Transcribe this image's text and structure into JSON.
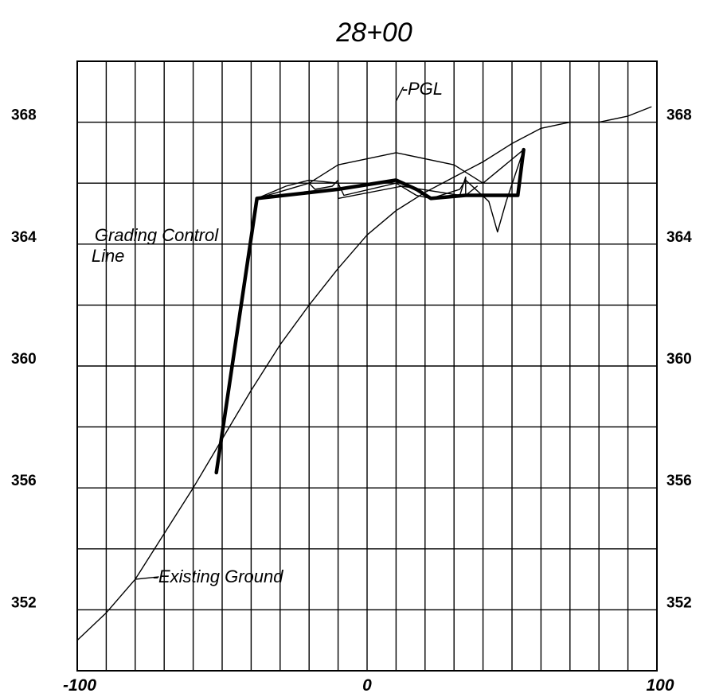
{
  "chart_data": {
    "type": "line",
    "title": "28+00",
    "xlabel": "",
    "ylabel": "",
    "xlim": [
      -100,
      100
    ],
    "ylim": [
      350,
      370
    ],
    "x_ticks": [
      "-100",
      "0",
      "100"
    ],
    "y_ticks": [
      "352",
      "356",
      "360",
      "364",
      "368"
    ],
    "grid": true,
    "x_grid_step": 10,
    "y_grid_step": 2,
    "series": [
      {
        "name": "Existing Ground",
        "stroke": "thin",
        "x": [
          -100,
          -90,
          -80,
          -70,
          -60,
          -50,
          -40,
          -30,
          -20,
          -10,
          0,
          10,
          20,
          30,
          40,
          50,
          60,
          70,
          80,
          90,
          98
        ],
        "y": [
          351.0,
          351.9,
          353.0,
          354.5,
          356.0,
          357.6,
          359.2,
          360.7,
          362.0,
          363.2,
          364.3,
          365.1,
          365.7,
          366.2,
          366.7,
          367.3,
          367.8,
          368.0,
          368.0,
          368.2,
          368.5
        ]
      },
      {
        "name": "Grading Control Line",
        "stroke": "thick",
        "x": [
          -52,
          -38,
          -10,
          10,
          17,
          22,
          34,
          52,
          54
        ],
        "y": [
          356.5,
          365.5,
          365.8,
          366.1,
          365.8,
          365.5,
          365.6,
          365.6,
          367.1
        ]
      },
      {
        "name": "PGL",
        "stroke": "thin",
        "x": [
          -38,
          -20,
          -10,
          10,
          30,
          40,
          54
        ],
        "y": [
          365.5,
          366.0,
          366.6,
          367.0,
          366.6,
          366.0,
          367.1
        ]
      },
      {
        "name": "",
        "stroke": "thin",
        "x": [
          -38,
          -28,
          -20,
          -10,
          -8,
          10,
          17,
          22,
          32,
          34,
          42,
          45,
          48,
          54
        ],
        "y": [
          365.5,
          365.9,
          366.1,
          366.0,
          365.6,
          366.0,
          365.6,
          365.5,
          365.8,
          366.1,
          365.4,
          364.4,
          365.4,
          367.1
        ]
      },
      {
        "name": "",
        "stroke": "thin",
        "x": [
          -20,
          -18,
          -12,
          -10,
          -10,
          12,
          32,
          34,
          34,
          38
        ],
        "y": [
          366.0,
          365.8,
          365.9,
          366.1,
          365.5,
          365.9,
          365.6,
          366.2,
          365.6,
          365.9
        ]
      }
    ],
    "annotations": [
      {
        "text": "-PGL",
        "x": 12,
        "y": 368.9
      },
      {
        "text": "Grading Control",
        "line2": "Line",
        "x": -94,
        "y": 364.1
      },
      {
        "text": "-Existing Ground",
        "x": -74,
        "y": 352.9
      }
    ]
  }
}
